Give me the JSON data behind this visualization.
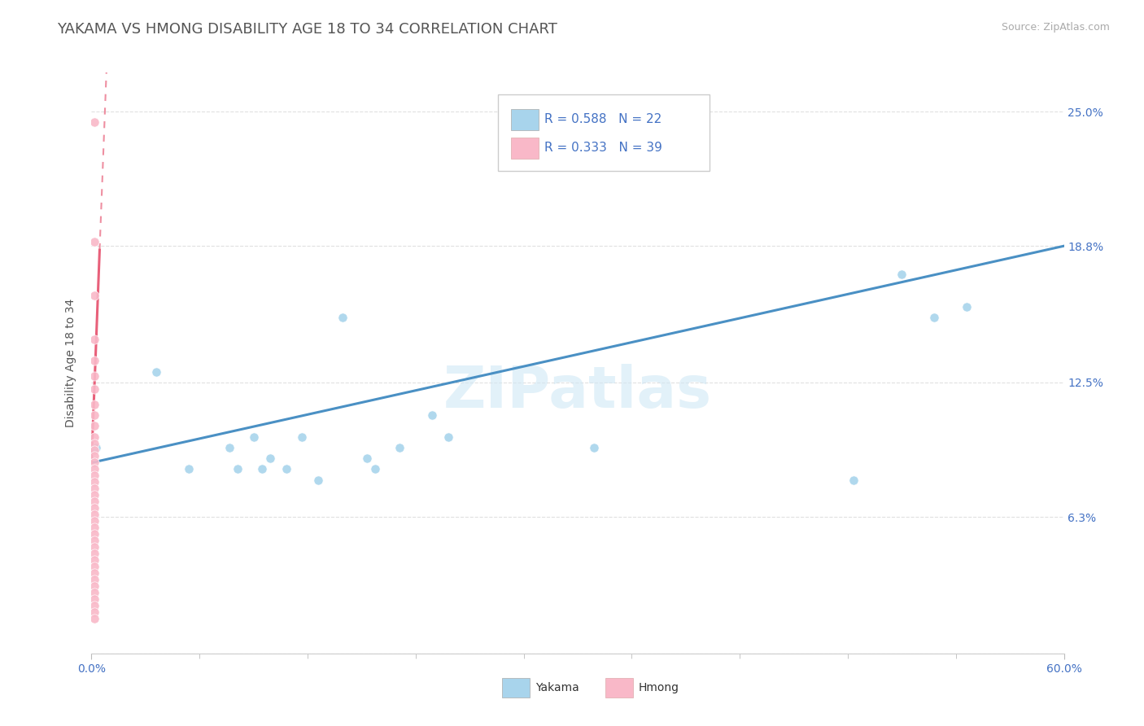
{
  "title": "YAKAMA VS HMONG DISABILITY AGE 18 TO 34 CORRELATION CHART",
  "source_text": "Source: ZipAtlas.com",
  "ylabel": "Disability Age 18 to 34",
  "xlim": [
    0.0,
    0.6
  ],
  "ylim": [
    0.0,
    0.268
  ],
  "ytick_positions": [
    0.0,
    0.063,
    0.125,
    0.188,
    0.25
  ],
  "ytick_labels_right": [
    "",
    "6.3%",
    "12.5%",
    "18.8%",
    "25.0%"
  ],
  "xtick_positions": [
    0.0,
    0.6
  ],
  "xtick_labels": [
    "0.0%",
    "60.0%"
  ],
  "yakama_color": "#a8d4ec",
  "hmong_color": "#f9b8c8",
  "trend_yakama_color": "#4a90c4",
  "trend_hmong_color": "#e8607a",
  "background_color": "#ffffff",
  "grid_color": "#e0e0e0",
  "watermark": "ZIPatlas",
  "legend_R_yakama": "R = 0.588",
  "legend_N_yakama": "N = 22",
  "legend_R_hmong": "R = 0.333",
  "legend_N_hmong": "N = 39",
  "text_color": "#4472c4",
  "title_color": "#555555",
  "yakama_x": [
    0.003,
    0.04,
    0.06,
    0.085,
    0.09,
    0.1,
    0.105,
    0.11,
    0.12,
    0.13,
    0.14,
    0.155,
    0.17,
    0.175,
    0.19,
    0.21,
    0.22,
    0.31,
    0.47,
    0.5,
    0.52,
    0.54
  ],
  "yakama_y": [
    0.095,
    0.13,
    0.085,
    0.095,
    0.085,
    0.1,
    0.085,
    0.09,
    0.085,
    0.1,
    0.08,
    0.155,
    0.09,
    0.085,
    0.095,
    0.11,
    0.1,
    0.095,
    0.08,
    0.175,
    0.155,
    0.16
  ],
  "hmong_x": [
    0.002,
    0.002,
    0.002,
    0.002,
    0.002,
    0.002,
    0.002,
    0.002,
    0.002,
    0.002,
    0.002,
    0.002,
    0.002,
    0.002,
    0.002,
    0.002,
    0.002,
    0.002,
    0.002,
    0.002,
    0.002,
    0.002,
    0.002,
    0.002,
    0.002,
    0.002,
    0.002,
    0.002,
    0.002,
    0.002,
    0.002,
    0.002,
    0.002,
    0.002,
    0.002,
    0.002,
    0.002,
    0.002,
    0.002
  ],
  "hmong_y": [
    0.245,
    0.19,
    0.165,
    0.145,
    0.135,
    0.128,
    0.122,
    0.115,
    0.11,
    0.105,
    0.1,
    0.097,
    0.094,
    0.091,
    0.088,
    0.085,
    0.082,
    0.079,
    0.076,
    0.073,
    0.07,
    0.067,
    0.064,
    0.061,
    0.058,
    0.055,
    0.052,
    0.049,
    0.046,
    0.043,
    0.04,
    0.037,
    0.034,
    0.031,
    0.028,
    0.025,
    0.022,
    0.019,
    0.016
  ],
  "trend_yak_x0": 0.0,
  "trend_yak_y0": 0.088,
  "trend_yak_x1": 0.6,
  "trend_yak_y1": 0.188,
  "trend_hmong_x0": 0.0,
  "trend_hmong_y0": 0.088,
  "trend_hmong_x1": 0.008,
  "trend_hmong_y1": 0.245
}
